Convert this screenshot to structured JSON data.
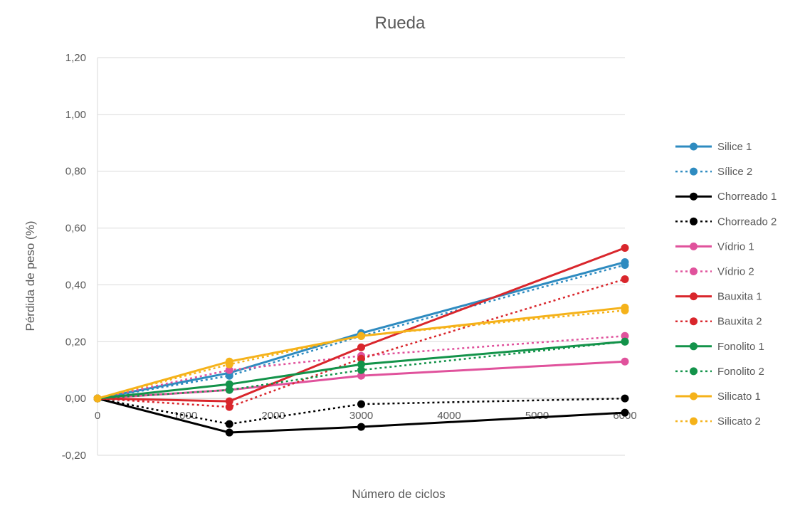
{
  "chart_data": {
    "type": "line",
    "title": "Rueda",
    "xlabel": "Número de ciclos",
    "ylabel": "Pérdida de peso (%)",
    "x_ticks": [
      "0",
      "1000",
      "2000",
      "3000",
      "4000",
      "5000",
      "6000"
    ],
    "y_ticks": [
      "-0,20",
      "0,00",
      "0,20",
      "0,40",
      "0,60",
      "0,80",
      "1,00",
      "1,20"
    ],
    "xlim": [
      0,
      6000
    ],
    "ylim": [
      -0.2,
      1.2
    ],
    "grid": "horizontal",
    "legend_position": "right",
    "x": [
      0,
      1500,
      3000,
      6000
    ],
    "series": [
      {
        "name": "Silice 1",
        "color": "#2E8BC0",
        "dash": "solid",
        "values": [
          0.0,
          0.09,
          0.23,
          0.48
        ]
      },
      {
        "name": "Sílice 2",
        "color": "#2E8BC0",
        "dash": "dotted",
        "values": [
          0.0,
          0.08,
          0.22,
          0.47
        ]
      },
      {
        "name": "Chorreado 1",
        "color": "#000000",
        "dash": "solid",
        "values": [
          0.0,
          -0.12,
          -0.1,
          -0.05
        ]
      },
      {
        "name": "Chorreado 2",
        "color": "#000000",
        "dash": "dotted",
        "values": [
          0.0,
          -0.09,
          -0.02,
          0.0
        ]
      },
      {
        "name": "Vídrio 1",
        "color": "#E0529C",
        "dash": "solid",
        "values": [
          0.0,
          0.03,
          0.08,
          0.13
        ]
      },
      {
        "name": "Vídrio 2",
        "color": "#E0529C",
        "dash": "dotted",
        "values": [
          0.0,
          0.1,
          0.15,
          0.22
        ]
      },
      {
        "name": "Bauxita 1",
        "color": "#D9262C",
        "dash": "solid",
        "values": [
          0.0,
          -0.01,
          0.18,
          0.53
        ]
      },
      {
        "name": "Bauxita 2",
        "color": "#D9262C",
        "dash": "dotted",
        "values": [
          0.0,
          -0.03,
          0.14,
          0.42
        ]
      },
      {
        "name": "Fonolito 1",
        "color": "#13934A",
        "dash": "solid",
        "values": [
          0.0,
          0.05,
          0.12,
          0.2
        ]
      },
      {
        "name": "Fonolito 2",
        "color": "#13934A",
        "dash": "dotted",
        "values": [
          0.0,
          0.03,
          0.1,
          0.2
        ]
      },
      {
        "name": "Silicato 1",
        "color": "#F5B21A",
        "dash": "solid",
        "values": [
          0.0,
          0.13,
          0.22,
          0.32
        ]
      },
      {
        "name": "Silicato 2",
        "color": "#F5B21A",
        "dash": "dotted",
        "values": [
          0.0,
          0.12,
          0.22,
          0.31
        ]
      }
    ]
  }
}
